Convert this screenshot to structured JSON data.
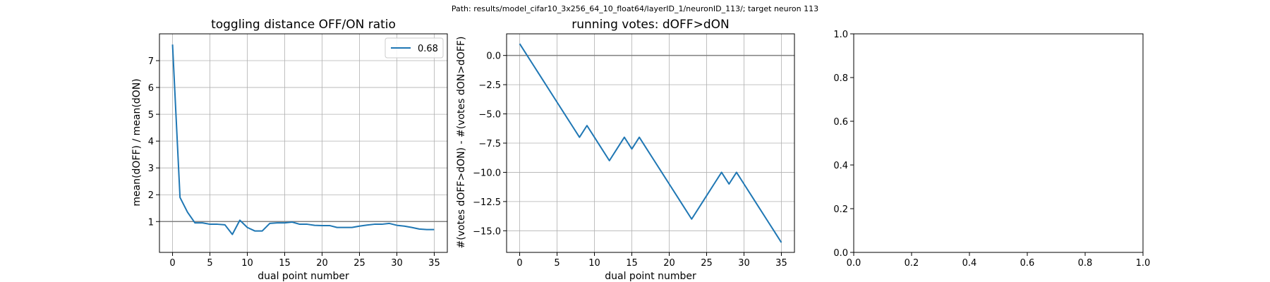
{
  "suptitle": "Path: results/model_cifar10_3x256_64_10_float64/layerID_1/neuronID_113/; target neuron 113",
  "chart_data": [
    {
      "type": "line",
      "title": "toggling distance OFF/ON ratio",
      "xlabel": "dual point number",
      "ylabel": "mean(dOFF) / mean(dON)",
      "xlim": [
        -1.75,
        36.75
      ],
      "ylim": [
        -0.15,
        8.0
      ],
      "xticks": [
        0,
        5,
        10,
        15,
        20,
        25,
        30,
        35
      ],
      "xtick_labels": [
        "0",
        "5",
        "10",
        "15",
        "20",
        "25",
        "30",
        "35"
      ],
      "yticks": [
        1,
        2,
        3,
        4,
        5,
        6,
        7
      ],
      "ytick_labels": [
        "1",
        "2",
        "3",
        "4",
        "5",
        "6",
        "7"
      ],
      "grid": true,
      "legend": "upper right",
      "hline": 1,
      "series": [
        {
          "name": "0.68",
          "color": "#1f77b4",
          "x": [
            0,
            1,
            2,
            3,
            4,
            5,
            6,
            7,
            8,
            9,
            10,
            11,
            12,
            13,
            14,
            15,
            16,
            17,
            18,
            19,
            20,
            21,
            22,
            23,
            24,
            25,
            26,
            27,
            28,
            29,
            30,
            31,
            32,
            33,
            34,
            35
          ],
          "y": [
            7.6,
            1.9,
            1.35,
            0.95,
            0.95,
            0.9,
            0.9,
            0.88,
            0.52,
            1.05,
            0.78,
            0.65,
            0.65,
            0.93,
            0.95,
            0.95,
            0.98,
            0.9,
            0.9,
            0.86,
            0.85,
            0.85,
            0.78,
            0.78,
            0.78,
            0.83,
            0.87,
            0.9,
            0.9,
            0.93,
            0.86,
            0.83,
            0.78,
            0.72,
            0.7,
            0.7
          ]
        }
      ]
    },
    {
      "type": "line",
      "title": "running votes: dOFF>dON",
      "xlabel": "dual point number",
      "ylabel": "#(votes dOFF>dON) - #(votes dON>dOFF)",
      "xlim": [
        -1.75,
        36.75
      ],
      "ylim": [
        -16.85,
        1.85
      ],
      "xticks": [
        0,
        5,
        10,
        15,
        20,
        25,
        30,
        35
      ],
      "xtick_labels": [
        "0",
        "5",
        "10",
        "15",
        "20",
        "25",
        "30",
        "35"
      ],
      "yticks": [
        0,
        -2.5,
        -5,
        -7.5,
        -10,
        -12.5,
        -15
      ],
      "ytick_labels": [
        "0.0",
        "−2.5",
        "−5.0",
        "−7.5",
        "−10.0",
        "−12.5",
        "−15.0"
      ],
      "grid": true,
      "hline": 0,
      "series": [
        {
          "color": "#1f77b4",
          "x": [
            0,
            1,
            2,
            3,
            4,
            5,
            6,
            7,
            8,
            9,
            10,
            11,
            12,
            13,
            14,
            15,
            16,
            17,
            18,
            19,
            20,
            21,
            22,
            23,
            24,
            25,
            26,
            27,
            28,
            29,
            30,
            31,
            32,
            33,
            34,
            35
          ],
          "y": [
            1,
            0,
            -1,
            -2,
            -3,
            -4,
            -5,
            -6,
            -7,
            -6,
            -7,
            -8,
            -9,
            -8,
            -7,
            -8,
            -7,
            -8,
            -9,
            -10,
            -11,
            -12,
            -13,
            -14,
            -13,
            -12,
            -11,
            -10,
            -11,
            -10,
            -11,
            -12,
            -13,
            -14,
            -15,
            -16
          ]
        }
      ]
    },
    {
      "type": "line",
      "title": "",
      "xlim": [
        0,
        1
      ],
      "ylim": [
        0,
        1
      ],
      "xticks": [
        0,
        0.2,
        0.4,
        0.6,
        0.8,
        1.0
      ],
      "xtick_labels": [
        "0.0",
        "0.2",
        "0.4",
        "0.6",
        "0.8",
        "1.0"
      ],
      "yticks": [
        0,
        0.2,
        0.4,
        0.6,
        0.8,
        1.0
      ],
      "ytick_labels": [
        "0.0",
        "0.2",
        "0.4",
        "0.6",
        "0.8",
        "1.0"
      ],
      "grid": false,
      "series": []
    }
  ]
}
